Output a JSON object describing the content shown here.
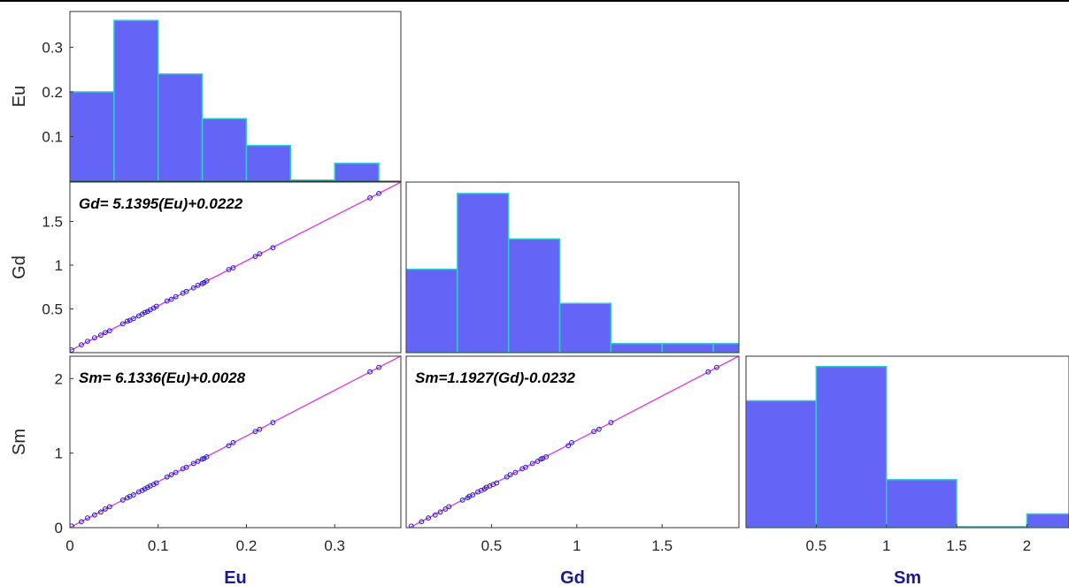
{
  "chart_data": [
    {
      "type": "bar",
      "panel": "hist-eu",
      "variable": "Eu",
      "ylabel": "Eu",
      "bin_edges": [
        0,
        0.05,
        0.1,
        0.15,
        0.2,
        0.25,
        0.3,
        0.35
      ],
      "values": [
        0.2,
        0.36,
        0.24,
        0.14,
        0.08,
        0.0,
        0.04
      ],
      "xlim": [
        0,
        0.375
      ],
      "ylim": [
        0,
        0.38
      ],
      "yticks": [
        "0.1",
        "0.2",
        "0.3"
      ]
    },
    {
      "type": "scatter",
      "panel": "scatter-gd-eu",
      "ylabel": "Gd",
      "equation": "Gd= 5.1395(Eu)+0.0222",
      "fit": {
        "slope": 5.1395,
        "intercept": 0.0222
      },
      "x": [
        0.002,
        0.013,
        0.02,
        0.028,
        0.035,
        0.04,
        0.045,
        0.06,
        0.065,
        0.068,
        0.072,
        0.078,
        0.082,
        0.085,
        0.088,
        0.091,
        0.095,
        0.098,
        0.11,
        0.115,
        0.12,
        0.128,
        0.132,
        0.14,
        0.145,
        0.15,
        0.152,
        0.155,
        0.18,
        0.185,
        0.21,
        0.215,
        0.23,
        0.34,
        0.35
      ],
      "y": [
        0.03,
        0.09,
        0.13,
        0.17,
        0.2,
        0.23,
        0.25,
        0.33,
        0.36,
        0.37,
        0.39,
        0.42,
        0.44,
        0.46,
        0.47,
        0.49,
        0.51,
        0.53,
        0.59,
        0.61,
        0.64,
        0.68,
        0.7,
        0.74,
        0.77,
        0.79,
        0.8,
        0.82,
        0.95,
        0.97,
        1.1,
        1.13,
        1.2,
        1.77,
        1.82
      ],
      "xlim": [
        0,
        0.375
      ],
      "ylim": [
        0,
        1.95
      ],
      "yticks": [
        "0.5",
        "1",
        "1.5"
      ]
    },
    {
      "type": "bar",
      "panel": "hist-gd",
      "variable": "Gd",
      "bin_edges": [
        0,
        0.3,
        0.6,
        0.9,
        1.2,
        1.5,
        1.8,
        1.95
      ],
      "values": [
        0.11,
        0.21,
        0.15,
        0.065,
        0.012,
        0.012,
        0.012
      ],
      "xlim": [
        0,
        1.95
      ],
      "ylim": [
        0,
        0.225
      ]
    },
    {
      "type": "scatter",
      "panel": "scatter-sm-eu",
      "ylabel": "Sm",
      "xlabel": "Eu",
      "equation": "Sm= 6.1336(Eu)+0.0028",
      "fit": {
        "slope": 6.1336,
        "intercept": 0.0028
      },
      "x": [
        0.002,
        0.013,
        0.02,
        0.028,
        0.035,
        0.04,
        0.045,
        0.06,
        0.065,
        0.068,
        0.072,
        0.078,
        0.082,
        0.085,
        0.088,
        0.091,
        0.095,
        0.098,
        0.11,
        0.115,
        0.12,
        0.128,
        0.132,
        0.14,
        0.145,
        0.15,
        0.152,
        0.155,
        0.18,
        0.185,
        0.21,
        0.215,
        0.23,
        0.34,
        0.35
      ],
      "y": [
        0.02,
        0.08,
        0.13,
        0.17,
        0.21,
        0.25,
        0.28,
        0.37,
        0.4,
        0.42,
        0.44,
        0.48,
        0.5,
        0.52,
        0.54,
        0.56,
        0.58,
        0.6,
        0.68,
        0.71,
        0.74,
        0.79,
        0.81,
        0.86,
        0.89,
        0.92,
        0.93,
        0.95,
        1.1,
        1.14,
        1.29,
        1.32,
        1.41,
        2.09,
        2.15
      ],
      "xlim": [
        0,
        0.375
      ],
      "ylim": [
        0,
        2.3
      ],
      "xticks": [
        "0",
        "0.1",
        "0.2",
        "0.3"
      ],
      "yticks": [
        "0",
        "1",
        "2"
      ]
    },
    {
      "type": "scatter",
      "panel": "scatter-sm-gd",
      "xlabel": "Gd",
      "equation": "Sm=1.1927(Gd)-0.0232",
      "fit": {
        "slope": 1.1927,
        "intercept": -0.0232
      },
      "x": [
        0.03,
        0.09,
        0.13,
        0.17,
        0.2,
        0.23,
        0.25,
        0.33,
        0.36,
        0.37,
        0.39,
        0.42,
        0.44,
        0.46,
        0.47,
        0.49,
        0.51,
        0.53,
        0.59,
        0.61,
        0.64,
        0.68,
        0.7,
        0.74,
        0.77,
        0.79,
        0.8,
        0.82,
        0.95,
        0.97,
        1.1,
        1.13,
        1.2,
        1.77,
        1.82
      ],
      "y": [
        0.02,
        0.08,
        0.13,
        0.17,
        0.21,
        0.25,
        0.28,
        0.37,
        0.4,
        0.42,
        0.44,
        0.48,
        0.5,
        0.52,
        0.54,
        0.56,
        0.58,
        0.6,
        0.68,
        0.71,
        0.74,
        0.79,
        0.81,
        0.86,
        0.89,
        0.92,
        0.93,
        0.95,
        1.1,
        1.14,
        1.29,
        1.32,
        1.41,
        2.09,
        2.15
      ],
      "xlim": [
        0,
        1.95
      ],
      "ylim": [
        0,
        2.3
      ],
      "xticks": [
        "0.5",
        "1",
        "1.5"
      ]
    },
    {
      "type": "bar",
      "panel": "hist-sm",
      "variable": "Sm",
      "xlabel": "Sm",
      "bin_edges": [
        0,
        0.5,
        1.0,
        1.5,
        2.0,
        2.5
      ],
      "values": [
        0.37,
        0.47,
        0.14,
        0.0,
        0.04
      ],
      "xlim": [
        0,
        2.3
      ],
      "ylim": [
        0,
        0.5
      ],
      "xticks": [
        "0.5",
        "1",
        "1.5",
        "2"
      ]
    }
  ],
  "colors": {
    "bar_fill": "#6464f6",
    "bar_edge": "#33cccc",
    "marker": "#1a1acc",
    "fit_line": "#e040e0",
    "axis_name": "#1a1a8c"
  }
}
